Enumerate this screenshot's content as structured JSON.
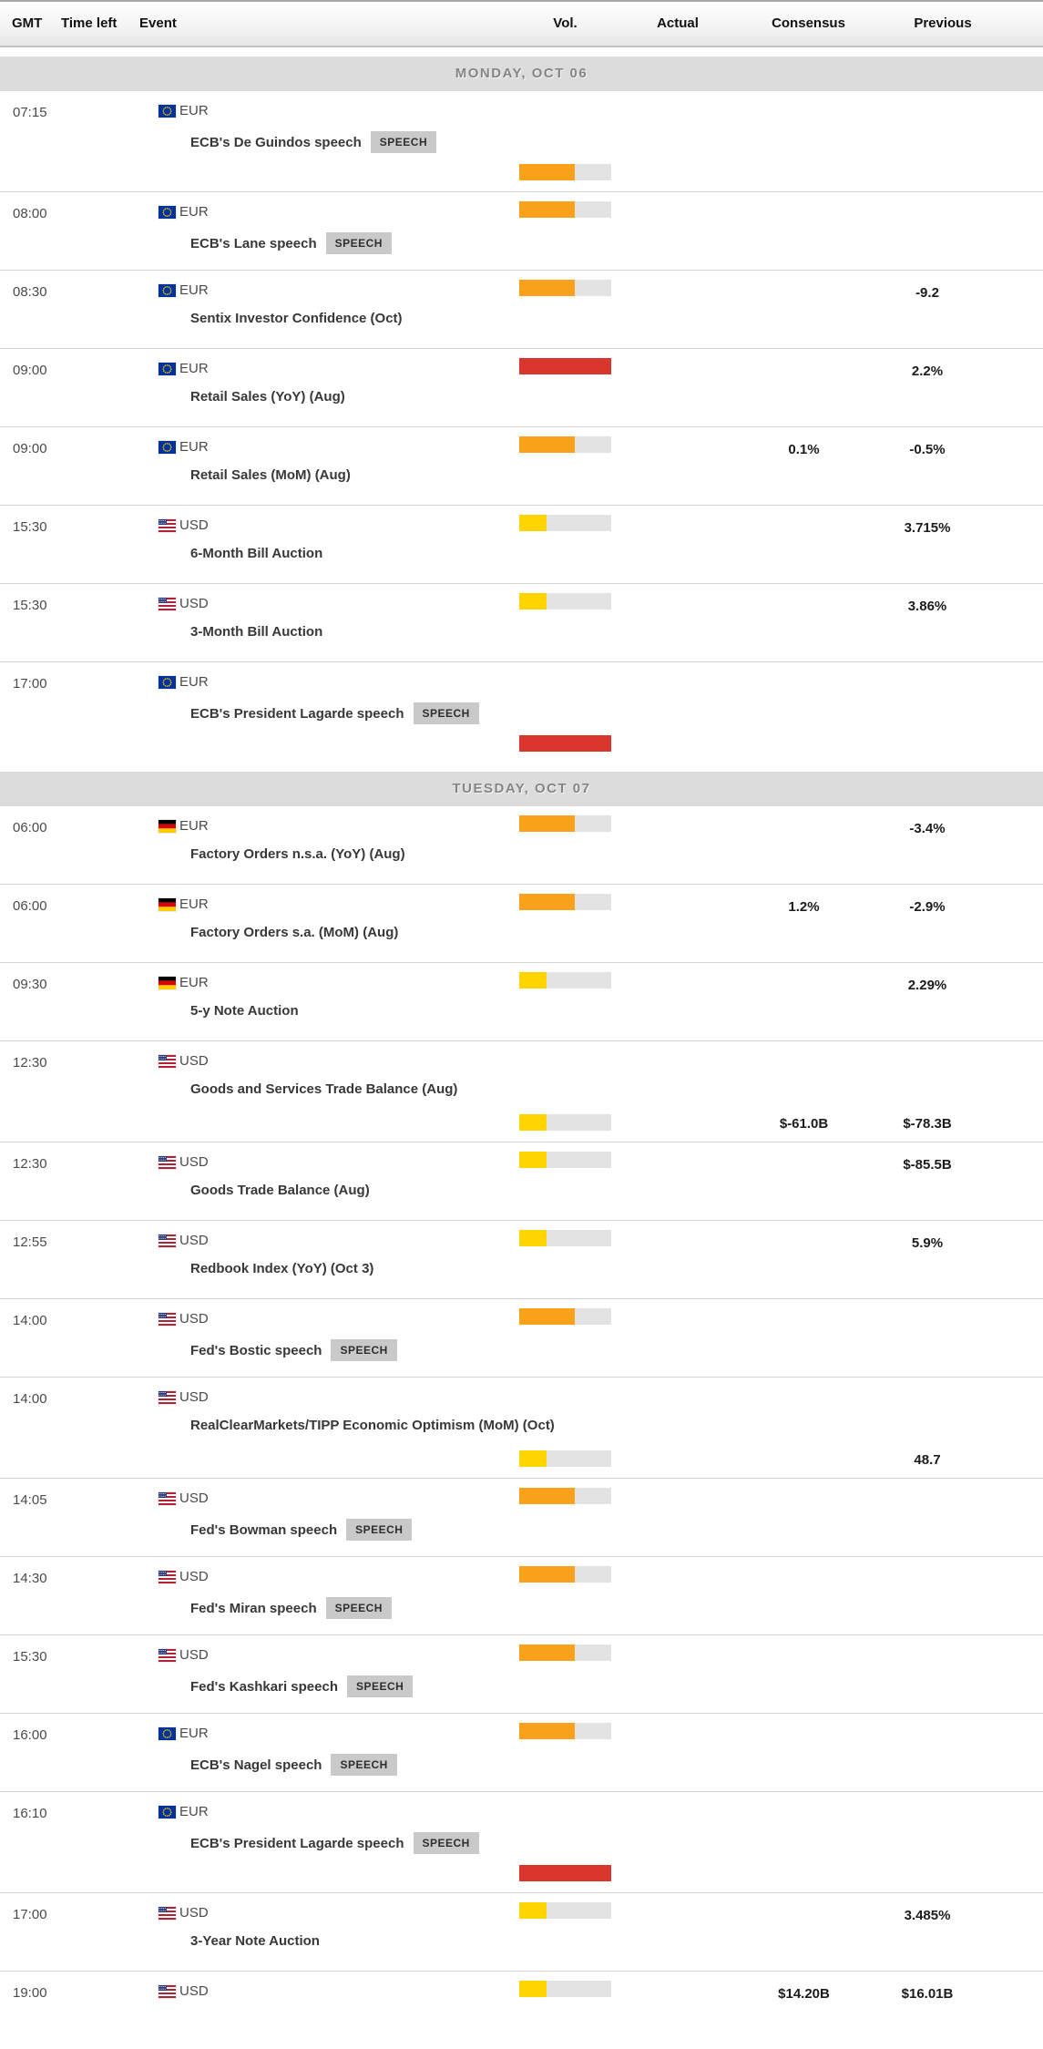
{
  "header": {
    "columns": [
      "GMT",
      "Time left",
      "Event",
      "Vol.",
      "Actual",
      "Consensus",
      "Previous"
    ]
  },
  "badges": {
    "speech": "SPEECH"
  },
  "volatility": {
    "yellow": {
      "color": "#FFD400",
      "fraction": 0.3
    },
    "orange": {
      "color": "#F9A11B",
      "fraction": 0.6
    },
    "red": {
      "color": "#D9372E",
      "fraction": 1.0
    }
  },
  "flag_colors": {
    "eu_blue": "#003399",
    "eu_star": "#FFCC00",
    "de_black": "#000000",
    "de_red": "#DD0000",
    "de_gold": "#FFCE00",
    "us_red": "#B22234",
    "us_blue": "#283577",
    "us_white": "#FFFFFF"
  },
  "days": [
    {
      "label": "MONDAY, OCT 06",
      "events": [
        {
          "time": "07:15",
          "country": "eu",
          "currency": "EUR",
          "event": "ECB's De Guindos speech",
          "speech": true,
          "volatility": "orange",
          "layout": "tall",
          "actual": "",
          "consensus": "",
          "previous": ""
        },
        {
          "time": "08:00",
          "country": "eu",
          "currency": "EUR",
          "event": "ECB's Lane speech",
          "speech": true,
          "volatility": "orange",
          "layout": "short",
          "actual": "",
          "consensus": "",
          "previous": ""
        },
        {
          "time": "08:30",
          "country": "eu",
          "currency": "EUR",
          "event": "Sentix Investor Confidence (Oct)",
          "speech": false,
          "volatility": "orange",
          "layout": "short",
          "actual": "",
          "consensus": "",
          "previous": "-9.2"
        },
        {
          "time": "09:00",
          "country": "eu",
          "currency": "EUR",
          "event": "Retail Sales (YoY) (Aug)",
          "speech": false,
          "volatility": "red",
          "layout": "short",
          "actual": "",
          "consensus": "",
          "previous": "2.2%"
        },
        {
          "time": "09:00",
          "country": "eu",
          "currency": "EUR",
          "event": "Retail Sales (MoM) (Aug)",
          "speech": false,
          "volatility": "orange",
          "layout": "short",
          "actual": "",
          "consensus": "0.1%",
          "previous": "-0.5%"
        },
        {
          "time": "15:30",
          "country": "us",
          "currency": "USD",
          "event": "6-Month Bill Auction",
          "speech": false,
          "volatility": "yellow",
          "layout": "short",
          "actual": "",
          "consensus": "",
          "previous": "3.715%"
        },
        {
          "time": "15:30",
          "country": "us",
          "currency": "USD",
          "event": "3-Month Bill Auction",
          "speech": false,
          "volatility": "yellow",
          "layout": "short",
          "actual": "",
          "consensus": "",
          "previous": "3.86%"
        },
        {
          "time": "17:00",
          "country": "eu",
          "currency": "EUR",
          "event": "ECB's President Lagarde speech",
          "speech": true,
          "volatility": "red",
          "layout": "tall",
          "actual": "",
          "consensus": "",
          "previous": ""
        }
      ]
    },
    {
      "label": "TUESDAY, OCT 07",
      "events": [
        {
          "time": "06:00",
          "country": "de",
          "currency": "EUR",
          "event": "Factory Orders n.s.a. (YoY) (Aug)",
          "speech": false,
          "volatility": "orange",
          "layout": "short",
          "actual": "",
          "consensus": "",
          "previous": "-3.4%"
        },
        {
          "time": "06:00",
          "country": "de",
          "currency": "EUR",
          "event": "Factory Orders s.a. (MoM) (Aug)",
          "speech": false,
          "volatility": "orange",
          "layout": "short",
          "actual": "",
          "consensus": "1.2%",
          "previous": "-2.9%"
        },
        {
          "time": "09:30",
          "country": "de",
          "currency": "EUR",
          "event": "5-y Note Auction",
          "speech": false,
          "volatility": "yellow",
          "layout": "short",
          "actual": "",
          "consensus": "",
          "previous": "2.29%"
        },
        {
          "time": "12:30",
          "country": "us",
          "currency": "USD",
          "event": "Goods and Services Trade Balance (Aug)",
          "speech": false,
          "volatility": "yellow",
          "layout": "tall",
          "actual": "",
          "consensus": "$-61.0B",
          "previous": "$-78.3B"
        },
        {
          "time": "12:30",
          "country": "us",
          "currency": "USD",
          "event": "Goods Trade Balance (Aug)",
          "speech": false,
          "volatility": "yellow",
          "layout": "short",
          "actual": "",
          "consensus": "",
          "previous": "$-85.5B"
        },
        {
          "time": "12:55",
          "country": "us",
          "currency": "USD",
          "event": "Redbook Index (YoY) (Oct 3)",
          "speech": false,
          "volatility": "yellow",
          "layout": "short",
          "actual": "",
          "consensus": "",
          "previous": "5.9%"
        },
        {
          "time": "14:00",
          "country": "us",
          "currency": "USD",
          "event": "Fed's Bostic speech",
          "speech": true,
          "volatility": "orange",
          "layout": "short",
          "actual": "",
          "consensus": "",
          "previous": ""
        },
        {
          "time": "14:00",
          "country": "us",
          "currency": "USD",
          "event": "RealClearMarkets/TIPP Economic Optimism (MoM) (Oct)",
          "speech": false,
          "volatility": "yellow",
          "layout": "tall",
          "actual": "",
          "consensus": "",
          "previous": "48.7"
        },
        {
          "time": "14:05",
          "country": "us",
          "currency": "USD",
          "event": "Fed's Bowman speech",
          "speech": true,
          "volatility": "orange",
          "layout": "short",
          "actual": "",
          "consensus": "",
          "previous": ""
        },
        {
          "time": "14:30",
          "country": "us",
          "currency": "USD",
          "event": "Fed's Miran speech",
          "speech": true,
          "volatility": "orange",
          "layout": "short",
          "actual": "",
          "consensus": "",
          "previous": ""
        },
        {
          "time": "15:30",
          "country": "us",
          "currency": "USD",
          "event": "Fed's Kashkari speech",
          "speech": true,
          "volatility": "orange",
          "layout": "short",
          "actual": "",
          "consensus": "",
          "previous": ""
        },
        {
          "time": "16:00",
          "country": "eu",
          "currency": "EUR",
          "event": "ECB's Nagel speech",
          "speech": true,
          "volatility": "orange",
          "layout": "short",
          "actual": "",
          "consensus": "",
          "previous": ""
        },
        {
          "time": "16:10",
          "country": "eu",
          "currency": "EUR",
          "event": "ECB's President Lagarde speech",
          "speech": true,
          "volatility": "red",
          "layout": "tall",
          "actual": "",
          "consensus": "",
          "previous": ""
        },
        {
          "time": "17:00",
          "country": "us",
          "currency": "USD",
          "event": "3-Year Note Auction",
          "speech": false,
          "volatility": "yellow",
          "layout": "short",
          "actual": "",
          "consensus": "",
          "previous": "3.485%"
        },
        {
          "time": "19:00",
          "country": "us",
          "currency": "USD",
          "event": "",
          "speech": false,
          "volatility": "yellow",
          "layout": "short",
          "actual": "",
          "consensus": "$14.20B",
          "previous": "$16.01B"
        }
      ]
    }
  ]
}
